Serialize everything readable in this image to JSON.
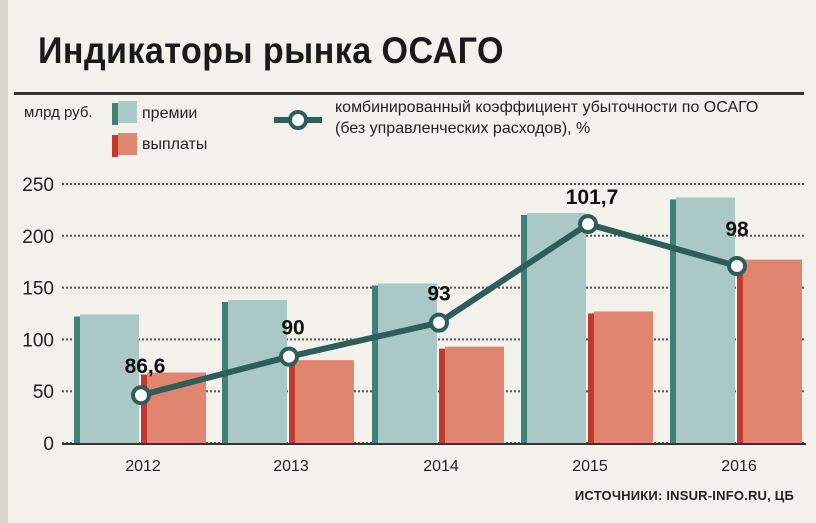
{
  "title": "Индикаторы рынка ОСАГО",
  "unit_label": "млрд руб.",
  "source": "ИСТОЧНИКИ: INSUR-INFO.RU, ЦБ",
  "legend": {
    "premiums": "премии",
    "payouts": "выплаты",
    "ratio_line1": "комбинированный коэффициент убыточности по ОСАГО",
    "ratio_line2": "(без управленческих расходов), %"
  },
  "colors": {
    "premiums": "#a9c8c6",
    "premiums_side": "#3f8079",
    "payouts": "#e0856f",
    "payouts_side": "#c0392b",
    "line": "#2f5d58"
  },
  "chart_data": {
    "type": "bar",
    "categories": [
      "2012",
      "2013",
      "2014",
      "2015",
      "2016"
    ],
    "ylim": [
      0,
      250
    ],
    "yticks": [
      0,
      50,
      100,
      150,
      200,
      250
    ],
    "grid": true,
    "series": [
      {
        "name": "премии",
        "values": [
          124,
          138,
          154,
          222,
          237
        ]
      },
      {
        "name": "выплаты",
        "values": [
          68,
          80,
          93,
          127,
          177
        ]
      }
    ],
    "line_series": {
      "name": "комбинированный коэффициент убыточности по ОСАГО (без управленческих расходов), %",
      "values": [
        86.6,
        90,
        93,
        101.7,
        98
      ],
      "labels": [
        "86,6",
        "90",
        "93",
        "101,7",
        "98"
      ]
    }
  }
}
